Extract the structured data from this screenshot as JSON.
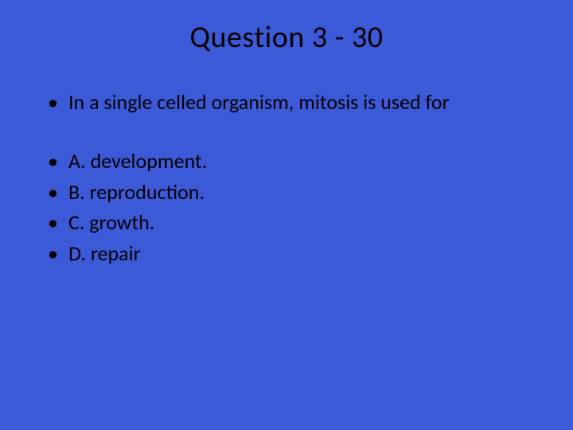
{
  "slide": {
    "background_color": "#3c5ad8",
    "text_color": "#000000",
    "title": "Question 3 - 30",
    "title_fontsize": 38,
    "body_fontsize": 26,
    "question": "In a single celled organism, mitosis is used for",
    "options": [
      "A. development.",
      "B. reproduction.",
      "C. growth.",
      "D. repair"
    ]
  }
}
